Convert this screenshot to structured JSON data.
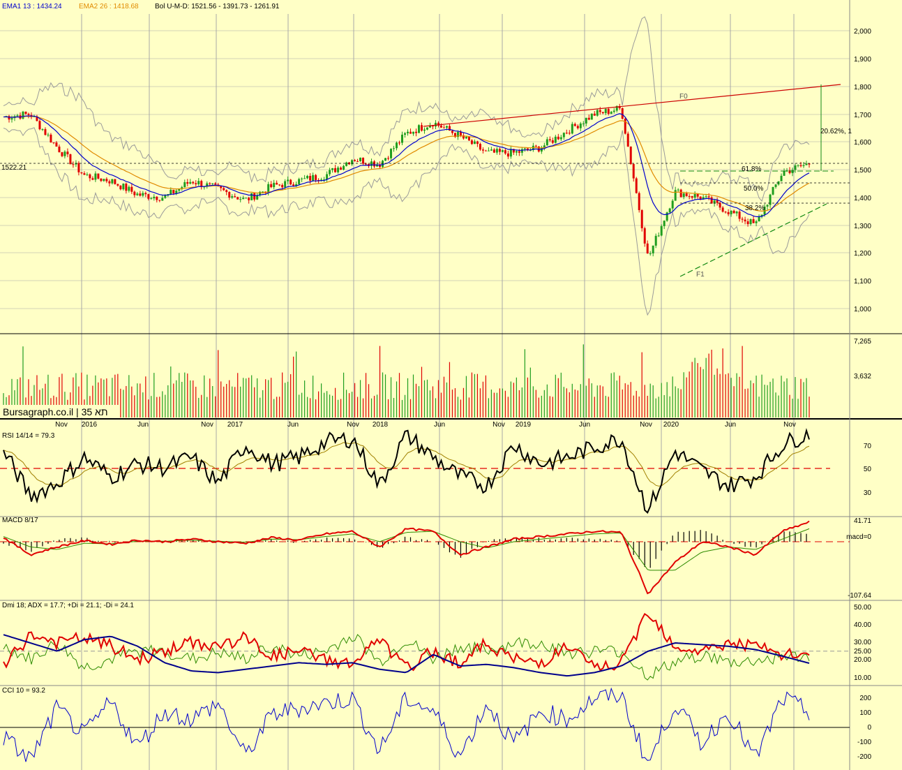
{
  "colors": {
    "background": "#ffffc6",
    "grid": "#a8a8a8",
    "up": "#1f9d1f",
    "down": "#e00000",
    "ema1": "#0000cc",
    "ema2": "#e08a00",
    "bollinger": "#9a9a9a",
    "trend_red": "#cc0000",
    "trend_green": "#118811",
    "dmi_adx": "#00008b",
    "dmi_plus": "#2e8b00",
    "dmi_minus": "#e00000",
    "rsi": "#000000",
    "rsi_ma": "#a08000"
  },
  "header": {
    "ema1": "EMA1 13 : 1434.24",
    "ema2": "EMA2 26 : 1418.68",
    "boll": "Bol U-M-D: 1521.56 - 1391.73 - 1261.91"
  },
  "watermark": "Bursagraph.co.il | 35 תא",
  "x_axis_labels": [
    "Nov",
    "2016",
    "Jun",
    "Nov",
    "2017",
    "Jun",
    "Nov",
    "2018",
    "Jun",
    "Nov",
    "2019",
    "Jun",
    "Nov",
    "2020",
    "Jun",
    "Nov"
  ],
  "price_panel": {
    "y_ticks": [
      "2,000",
      "1,900",
      "1,800",
      "1,700",
      "1,600",
      "1,500",
      "1,400",
      "1,300",
      "1,200",
      "1,100",
      "1,000"
    ],
    "last_value_label": "1522.21",
    "annotations": {
      "fib_618": "61.8%",
      "fib_500": "50.0%",
      "fib_382": "38.2%",
      "pct_move": "20.62%, 1",
      "f0": "F0",
      "f1": "F1"
    }
  },
  "volume_panel": {
    "y_ticks": [
      "7,265",
      "3,632"
    ]
  },
  "rsi_panel": {
    "title": "RSI 14/14 = 79.3",
    "y_ticks": [
      "70",
      "50",
      "30"
    ]
  },
  "macd_panel": {
    "title": "MACD 8/17",
    "y_ticks": [
      "41.71",
      "macd=0",
      "-107.64"
    ]
  },
  "dmi_panel": {
    "title": "Dmi 18; ADX = 17.7; +Di = 21.1; -Di = 24.1",
    "y_ticks": [
      "50.00",
      "40.00",
      "30.00",
      "25.00",
      "20.00",
      "10.00"
    ]
  },
  "cci_panel": {
    "title": "CCI 10 = 93.2",
    "y_ticks": [
      "200",
      "100",
      "0",
      "-100",
      "-200"
    ]
  },
  "chart_data": {
    "type": "line",
    "title": "",
    "xlabel": "",
    "ylabel": "",
    "grid": true,
    "x": [
      "2015-09",
      "2015-11",
      "2016-01",
      "2016-03",
      "2016-06",
      "2016-08",
      "2016-11",
      "2017-01",
      "2017-03",
      "2017-06",
      "2017-08",
      "2017-11",
      "2018-01",
      "2018-03",
      "2018-06",
      "2018-08",
      "2018-11",
      "2019-01",
      "2019-03",
      "2019-06",
      "2019-08",
      "2019-11",
      "2020-01",
      "2020-02",
      "2020-03",
      "2020-04",
      "2020-06",
      "2020-08",
      "2020-10",
      "2020-11",
      "2020-12"
    ],
    "ylim": [
      950,
      2050
    ],
    "series": [
      {
        "values": [
          1690,
          1700,
          1580,
          1480,
          1460,
          1410,
          1400,
          1460,
          1430,
          1390,
          1440,
          1460,
          1480,
          1540,
          1520,
          1630,
          1670,
          1620,
          1560,
          1560,
          1580,
          1640,
          1700,
          1720,
          1180,
          1420,
          1400,
          1350,
          1300,
          1490,
          1522
        ]
      }
    ],
    "volume": {
      "ylim": [
        0,
        7265
      ]
    },
    "rsi": {
      "ylim": [
        15,
        82
      ],
      "values": [
        65,
        30,
        40,
        60,
        45,
        55,
        52,
        60,
        40,
        70,
        55,
        60,
        72,
        75,
        38,
        78,
        60,
        45,
        38,
        70,
        55,
        60,
        68,
        75,
        18,
        65,
        50,
        38,
        45,
        70,
        79.3
      ]
    },
    "macd": {
      "ylim": [
        -107.64,
        41.71
      ],
      "macd": [
        8,
        -25,
        -10,
        2,
        -5,
        3,
        0,
        5,
        0,
        -3,
        8,
        3,
        15,
        20,
        -10,
        25,
        20,
        -25,
        -10,
        5,
        10,
        15,
        20,
        18,
        -100,
        -40,
        0,
        -10,
        -25,
        20,
        38
      ],
      "signal": [
        10,
        -10,
        -15,
        -3,
        -4,
        1,
        1,
        3,
        1,
        -1,
        5,
        4,
        10,
        15,
        0,
        18,
        20,
        0,
        -12,
        0,
        5,
        10,
        15,
        17,
        -55,
        -55,
        -20,
        -10,
        -15,
        5,
        25
      ]
    },
    "dmi": {
      "ylim": [
        5,
        55
      ],
      "adx": [
        35,
        30,
        25,
        32,
        34,
        28,
        18,
        13,
        12,
        14,
        16,
        18,
        17,
        18,
        14,
        12,
        23,
        16,
        17,
        15,
        12,
        10,
        12,
        16,
        25,
        30,
        29,
        28,
        26,
        22,
        17.7
      ],
      "plus_di": [
        28,
        20,
        30,
        15,
        20,
        25,
        25,
        20,
        24,
        20,
        28,
        22,
        25,
        35,
        18,
        32,
        20,
        28,
        25,
        30,
        30,
        24,
        25,
        25,
        10,
        18,
        23,
        18,
        19,
        22,
        21.1
      ],
      "minus_di": [
        15,
        35,
        30,
        33,
        28,
        20,
        25,
        30,
        28,
        33,
        22,
        25,
        20,
        17,
        32,
        14,
        25,
        18,
        30,
        20,
        18,
        28,
        15,
        17,
        50,
        28,
        25,
        30,
        28,
        22,
        24.1
      ]
    },
    "cci": {
      "ylim": [
        -250,
        250
      ],
      "values": [
        -60,
        -200,
        120,
        -50,
        160,
        -120,
        100,
        50,
        150,
        -180,
        80,
        120,
        150,
        180,
        -150,
        180,
        100,
        -180,
        150,
        -100,
        100,
        50,
        180,
        200,
        -230,
        150,
        -100,
        100,
        -200,
        180,
        93.2
      ]
    }
  }
}
